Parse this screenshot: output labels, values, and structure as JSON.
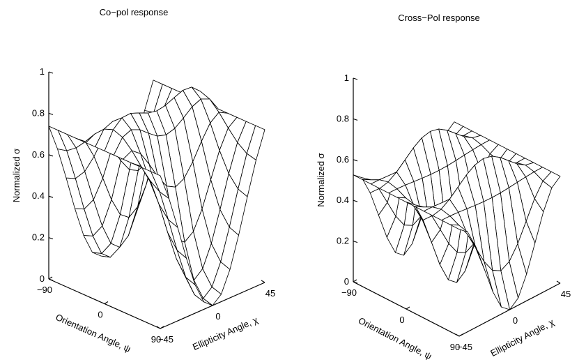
{
  "chart_data": [
    {
      "type": "surface",
      "title": "Co−pol response",
      "zlabel": "Normalized σ",
      "xlabel": "Orientation Angle, ψ",
      "ylabel": "Ellipticity Angle, χ",
      "x_range": [
        -90,
        90
      ],
      "y_range": [
        -45,
        45
      ],
      "z_range": [
        0,
        1
      ],
      "z_ticks": [
        "0",
        "0.2",
        "0.4",
        "0.6",
        "0.8",
        "1"
      ],
      "x_ticks": [
        "−90",
        "0",
        "90"
      ],
      "y_ticks": [
        "−45",
        "0",
        "45"
      ],
      "grid_size": 13,
      "function": "copol",
      "z_extremes": {
        "max": 1.0,
        "min": 0.0,
        "edge_value": 0.18
      }
    },
    {
      "type": "surface",
      "title": "Cross−Pol response",
      "zlabel": "Normalized σ",
      "xlabel": "Orientation Angle, ψ",
      "ylabel": "Ellipticity Angle, χ",
      "x_range": [
        -90,
        90
      ],
      "y_range": [
        -45,
        45
      ],
      "z_range": [
        0,
        1
      ],
      "z_ticks": [
        "0",
        "0.2",
        "0.4",
        "0.6",
        "0.8",
        "1"
      ],
      "x_ticks": [
        "−90",
        "0",
        "90"
      ],
      "y_ticks": [
        "−45",
        "0",
        "45"
      ],
      "grid_size": 13,
      "function": "crosspol",
      "z_extremes": {
        "max": 0.87,
        "min": 0.0,
        "edge_value": 0.72
      }
    }
  ]
}
